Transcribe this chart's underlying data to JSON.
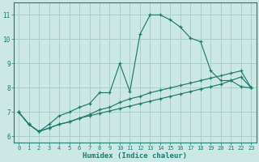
{
  "xlabel": "Humidex (Indice chaleur)",
  "background_color": "#cce8e5",
  "grid_color": "#aacfcc",
  "line_color": "#1e7b6e",
  "xlim": [
    -0.5,
    23.5
  ],
  "ylim": [
    5.75,
    11.5
  ],
  "xticks": [
    0,
    1,
    2,
    3,
    4,
    5,
    6,
    7,
    8,
    9,
    10,
    11,
    12,
    13,
    14,
    15,
    16,
    17,
    18,
    19,
    20,
    21,
    22,
    23
  ],
  "yticks": [
    6,
    7,
    8,
    9,
    10,
    11
  ],
  "line1_x": [
    0,
    1,
    2,
    3,
    4,
    5,
    6,
    7,
    8,
    9,
    10,
    11,
    12,
    13,
    14,
    15,
    16,
    17,
    18,
    19,
    20,
    21,
    22,
    23
  ],
  "line1_y": [
    7.0,
    6.5,
    6.2,
    6.35,
    6.5,
    6.6,
    6.75,
    6.85,
    6.95,
    7.05,
    7.15,
    7.25,
    7.35,
    7.45,
    7.55,
    7.65,
    7.75,
    7.85,
    7.95,
    8.05,
    8.15,
    8.3,
    8.45,
    8.0
  ],
  "line2_x": [
    0,
    1,
    2,
    3,
    4,
    5,
    6,
    7,
    8,
    9,
    10,
    11,
    12,
    13,
    14,
    15,
    16,
    17,
    18,
    19,
    20,
    21,
    22,
    23
  ],
  "line2_y": [
    7.0,
    6.5,
    6.2,
    6.5,
    6.85,
    7.0,
    7.2,
    7.35,
    7.8,
    7.8,
    9.0,
    7.85,
    10.2,
    11.0,
    11.0,
    10.8,
    10.5,
    10.05,
    9.9,
    8.7,
    8.3,
    8.3,
    8.05,
    8.0
  ],
  "line3_x": [
    0,
    1,
    2,
    3,
    4,
    5,
    6,
    7,
    8,
    9,
    10,
    11,
    12,
    13,
    14,
    15,
    16,
    17,
    18,
    19,
    20,
    21,
    22,
    23
  ],
  "line3_y": [
    7.0,
    6.5,
    6.2,
    6.35,
    6.5,
    6.6,
    6.75,
    6.9,
    7.1,
    7.2,
    7.4,
    7.55,
    7.65,
    7.8,
    7.9,
    8.0,
    8.1,
    8.2,
    8.3,
    8.4,
    8.5,
    8.6,
    8.7,
    8.0
  ]
}
